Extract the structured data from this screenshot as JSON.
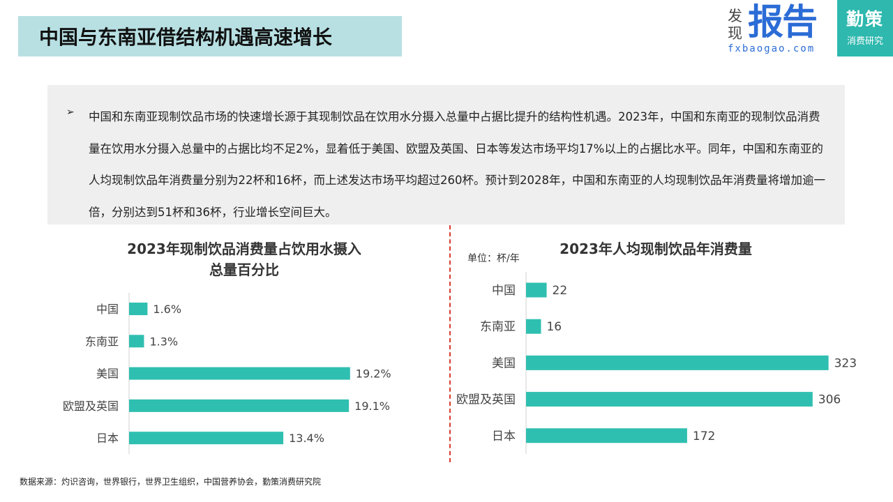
{
  "header": {
    "title": "中国与东南亚借结构机遇高速增长"
  },
  "logo": {
    "small_top": "发",
    "small_bottom": "现",
    "big": "报告",
    "url": "fxbaogao.com"
  },
  "brand": {
    "main": "勤策",
    "sub": "消费研究"
  },
  "summary": {
    "bullet": "➢",
    "text": "中国和东南亚现制饮品市场的快速增长源于其现制饮品在饮用水分摄入总量中占据比提升的结构性机遇。2023年，中国和东南亚的现制饮品消费量在饮用水分摄入总量中的占据比均不足2%，显着低于美国、欧盟及英国、日本等发达市场平均17%以上的占据比水平。同年，中国和东南亚的人均现制饮品年消费量分别为22杯和16杯，而上述发达市场平均超过260杯。预计到2028年，中国和东南亚的人均现制饮品年消费量将增加逾一倍，分别达到51杯和36杯，行业增长空间巨大。"
  },
  "colors": {
    "bar": "#2fbfb0",
    "title_bg": "#b8e0e3",
    "brand_bg": "#2eb8ae",
    "logo_blue": "#2b6cd6",
    "divider": "#d93a2f"
  },
  "chart_data": [
    {
      "type": "bar",
      "orientation": "horizontal",
      "title_line1": "2023年现制饮品消费量占饮用水摄入",
      "title_line2": "总量百分比",
      "categories": [
        "中国",
        "东南亚",
        "美国",
        "欧盟及英国",
        "日本"
      ],
      "values": [
        1.6,
        1.3,
        19.2,
        19.1,
        13.4
      ],
      "value_labels": [
        "1.6%",
        "1.3%",
        "19.2%",
        "19.1%",
        "13.4%"
      ],
      "unit": "%",
      "xlim": [
        0,
        20
      ],
      "grid": false
    },
    {
      "type": "bar",
      "orientation": "horizontal",
      "title": "2023年人均现制饮品年消费量",
      "unit_label": "单位：杯/年",
      "categories": [
        "中国",
        "东南亚",
        "美国",
        "欧盟及英国",
        "日本"
      ],
      "values": [
        22,
        16,
        323,
        306,
        172
      ],
      "value_labels": [
        "22",
        "16",
        "323",
        "306",
        "172"
      ],
      "xlim": [
        0,
        330
      ],
      "grid": false
    }
  ],
  "footer": {
    "source": "数据来源：灼识咨询，世界银行，世界卫生组织，中国营养协会，勤策消费研究院"
  }
}
